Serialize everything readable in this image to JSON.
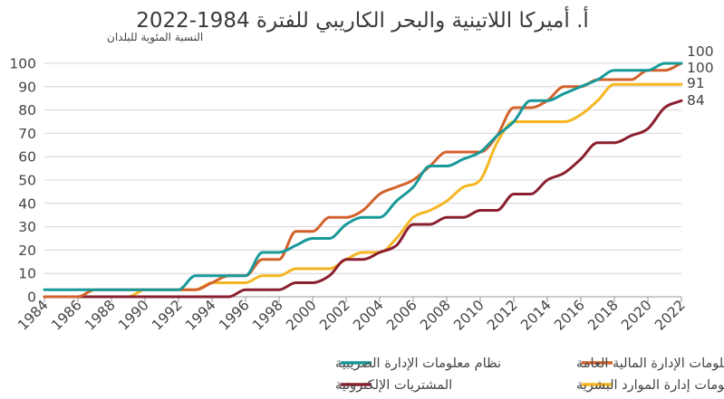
{
  "chart_data": {
    "type": "line",
    "title": "أ. أميركا اللاتينية والبحر الكاريبي للفترة 1984-2022",
    "ylabel": "النسبة المئوية للبلدان",
    "xlabel": "",
    "xlim": [
      1984,
      2022
    ],
    "ylim": [
      0,
      100
    ],
    "y_ticks": [
      0,
      10,
      20,
      30,
      40,
      50,
      60,
      70,
      80,
      90,
      100
    ],
    "x_ticks": [
      1984,
      1986,
      1988,
      1990,
      1992,
      1994,
      1996,
      1998,
      2000,
      2002,
      2004,
      2006,
      2008,
      2010,
      2012,
      2014,
      2016,
      2018,
      2020,
      2022
    ],
    "grid": "horizontal",
    "legend_position": "bottom",
    "series": [
      {
        "name": "نظام معلومات الإدارة المالية العامة",
        "color": "#d2622c",
        "end_label": "100",
        "points": [
          [
            1984,
            0
          ],
          [
            1985,
            0
          ],
          [
            1986,
            0
          ],
          [
            1987,
            3
          ],
          [
            1988,
            3
          ],
          [
            1989,
            3
          ],
          [
            1990,
            3
          ],
          [
            1991,
            3
          ],
          [
            1992,
            3
          ],
          [
            1993,
            3
          ],
          [
            1994,
            6
          ],
          [
            1995,
            9
          ],
          [
            1996,
            9
          ],
          [
            1997,
            16
          ],
          [
            1998,
            16
          ],
          [
            1999,
            28
          ],
          [
            2000,
            28
          ],
          [
            2001,
            34
          ],
          [
            2002,
            34
          ],
          [
            2003,
            37
          ],
          [
            2004,
            44
          ],
          [
            2005,
            47
          ],
          [
            2006,
            50
          ],
          [
            2007,
            56
          ],
          [
            2008,
            62
          ],
          [
            2009,
            62
          ],
          [
            2010,
            62
          ],
          [
            2011,
            69
          ],
          [
            2012,
            81
          ],
          [
            2013,
            81
          ],
          [
            2014,
            84
          ],
          [
            2015,
            90
          ],
          [
            2016,
            90
          ],
          [
            2017,
            93
          ],
          [
            2018,
            93
          ],
          [
            2019,
            93
          ],
          [
            2020,
            97
          ],
          [
            2021,
            97
          ],
          [
            2022,
            100
          ]
        ]
      },
      {
        "name": "نظام معلومات الإدارة الضريبية",
        "color": "#17999a",
        "end_label": "100",
        "points": [
          [
            1984,
            3
          ],
          [
            1985,
            3
          ],
          [
            1986,
            3
          ],
          [
            1987,
            3
          ],
          [
            1988,
            3
          ],
          [
            1989,
            3
          ],
          [
            1990,
            3
          ],
          [
            1991,
            3
          ],
          [
            1992,
            3
          ],
          [
            1993,
            9
          ],
          [
            1994,
            9
          ],
          [
            1995,
            9
          ],
          [
            1996,
            9
          ],
          [
            1997,
            19
          ],
          [
            1998,
            19
          ],
          [
            1999,
            22
          ],
          [
            2000,
            25
          ],
          [
            2001,
            25
          ],
          [
            2002,
            31
          ],
          [
            2003,
            34
          ],
          [
            2004,
            34
          ],
          [
            2005,
            41
          ],
          [
            2006,
            47
          ],
          [
            2007,
            56
          ],
          [
            2008,
            56
          ],
          [
            2009,
            59
          ],
          [
            2010,
            62
          ],
          [
            2011,
            69
          ],
          [
            2012,
            75
          ],
          [
            2013,
            84
          ],
          [
            2014,
            84
          ],
          [
            2015,
            87
          ],
          [
            2016,
            90
          ],
          [
            2017,
            93
          ],
          [
            2018,
            97
          ],
          [
            2019,
            97
          ],
          [
            2020,
            97
          ],
          [
            2021,
            100
          ],
          [
            2022,
            100
          ]
        ]
      },
      {
        "name": "نظام معلومات إدارة الموارد البشرية",
        "color": "#f5b622",
        "end_label": "91",
        "points": [
          [
            1984,
            0
          ],
          [
            1985,
            0
          ],
          [
            1986,
            0
          ],
          [
            1987,
            0
          ],
          [
            1988,
            0
          ],
          [
            1989,
            0
          ],
          [
            1990,
            3
          ],
          [
            1991,
            3
          ],
          [
            1992,
            3
          ],
          [
            1993,
            3
          ],
          [
            1994,
            6
          ],
          [
            1995,
            6
          ],
          [
            1996,
            6
          ],
          [
            1997,
            9
          ],
          [
            1998,
            9
          ],
          [
            1999,
            12
          ],
          [
            2000,
            12
          ],
          [
            2001,
            12
          ],
          [
            2002,
            16
          ],
          [
            2003,
            19
          ],
          [
            2004,
            19
          ],
          [
            2005,
            25
          ],
          [
            2006,
            34
          ],
          [
            2007,
            37
          ],
          [
            2008,
            41
          ],
          [
            2009,
            47
          ],
          [
            2010,
            50
          ],
          [
            2011,
            66
          ],
          [
            2012,
            75
          ],
          [
            2013,
            75
          ],
          [
            2014,
            75
          ],
          [
            2015,
            75
          ],
          [
            2016,
            78
          ],
          [
            2017,
            84
          ],
          [
            2018,
            91
          ],
          [
            2019,
            91
          ],
          [
            2020,
            91
          ],
          [
            2021,
            91
          ],
          [
            2022,
            91
          ]
        ]
      },
      {
        "name": "المشتريات الإلكترونية",
        "color": "#8a1f2f",
        "end_label": "84",
        "points": [
          [
            1984,
            0
          ],
          [
            1985,
            0
          ],
          [
            1986,
            0
          ],
          [
            1987,
            0
          ],
          [
            1988,
            0
          ],
          [
            1989,
            0
          ],
          [
            1990,
            0
          ],
          [
            1991,
            0
          ],
          [
            1992,
            0
          ],
          [
            1993,
            0
          ],
          [
            1994,
            0
          ],
          [
            1995,
            0
          ],
          [
            1996,
            3
          ],
          [
            1997,
            3
          ],
          [
            1998,
            3
          ],
          [
            1999,
            6
          ],
          [
            2000,
            6
          ],
          [
            2001,
            9
          ],
          [
            2002,
            16
          ],
          [
            2003,
            16
          ],
          [
            2004,
            19
          ],
          [
            2005,
            22
          ],
          [
            2006,
            31
          ],
          [
            2007,
            31
          ],
          [
            2008,
            34
          ],
          [
            2009,
            34
          ],
          [
            2010,
            37
          ],
          [
            2011,
            37
          ],
          [
            2012,
            44
          ],
          [
            2013,
            44
          ],
          [
            2014,
            50
          ],
          [
            2015,
            53
          ],
          [
            2016,
            59
          ],
          [
            2017,
            66
          ],
          [
            2018,
            66
          ],
          [
            2019,
            69
          ],
          [
            2020,
            72
          ],
          [
            2021,
            81
          ],
          [
            2022,
            84
          ]
        ]
      }
    ],
    "legend": [
      {
        "series_index": 1,
        "label": "نظام معلومات الإدارة الضريبية"
      },
      {
        "series_index": 0,
        "label": "نظام معلومات الإدارة المالية العامة"
      },
      {
        "series_index": 3,
        "label": "المشتريات الإلكترونية"
      },
      {
        "series_index": 2,
        "label": "نظام معلومات إدارة الموارد البشرية"
      }
    ]
  }
}
